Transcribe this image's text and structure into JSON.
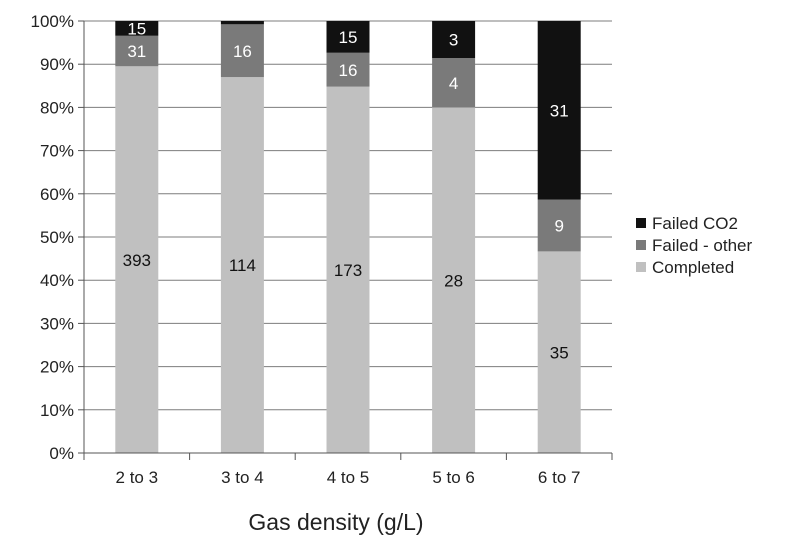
{
  "chart_data": {
    "type": "bar",
    "stacked": true,
    "normalized": true,
    "categories": [
      "2 to 3",
      "3 to 4",
      "4 to 5",
      "5 to 6",
      "6 to 7"
    ],
    "series": [
      {
        "name": "Completed",
        "values": [
          393,
          114,
          173,
          28,
          35
        ],
        "color": "#c0c0c0",
        "label_color": "#111111"
      },
      {
        "name": "Failed - other",
        "values": [
          31,
          16,
          16,
          4,
          9
        ],
        "color": "#7a7a7a",
        "label_color": "#ffffff"
      },
      {
        "name": "Failed CO2",
        "values": [
          15,
          1,
          15,
          3,
          31
        ],
        "color": "#111111",
        "label_color": "#ffffff"
      }
    ],
    "segment_labels": [
      [
        "393",
        "31",
        "15"
      ],
      [
        "114",
        "16",
        ""
      ],
      [
        "173",
        "16",
        "15"
      ],
      [
        "28",
        "4",
        "3"
      ],
      [
        "35",
        "9",
        "31"
      ]
    ],
    "title": "",
    "xlabel": "Gas density (g/L)",
    "ylabel": "",
    "ylim": [
      0,
      100
    ],
    "yticks": [
      "0%",
      "10%",
      "20%",
      "30%",
      "40%",
      "50%",
      "60%",
      "70%",
      "80%",
      "90%",
      "100%"
    ],
    "grid": true,
    "legend_position": "right",
    "legend_order": [
      "Failed CO2",
      "Failed - other",
      "Completed"
    ]
  }
}
